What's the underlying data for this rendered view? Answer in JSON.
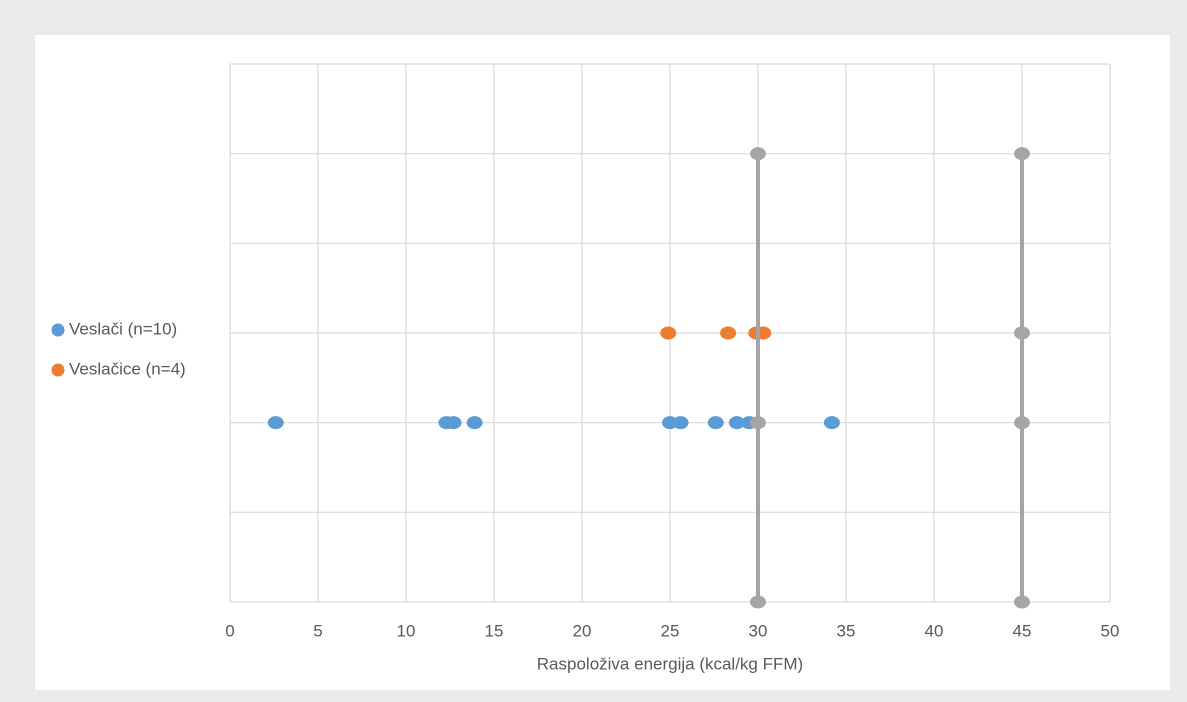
{
  "chart_data": {
    "type": "scatter",
    "x_label": "Raspoloživa energija (kcal/kg FFM)",
    "xlim": [
      0,
      50
    ],
    "xticks": [
      0,
      5,
      10,
      15,
      20,
      25,
      30,
      35,
      40,
      45,
      50
    ],
    "ylim": [
      0,
      6
    ],
    "yticks": [
      0,
      1,
      2,
      3,
      4,
      5,
      6
    ],
    "ytick_labels": false,
    "grid": true,
    "legend": "left",
    "series": [
      {
        "name": "Veslači (n=10)",
        "color": "#5b9bd5",
        "x": [
          2.6,
          12.3,
          12.7,
          13.9,
          25.0,
          25.6,
          27.6,
          28.8,
          29.5,
          34.2
        ],
        "y": [
          2,
          2,
          2,
          2,
          2,
          2,
          2,
          2,
          2,
          2
        ]
      },
      {
        "name": "Veslačice (n=4)",
        "color": "#ed7d31",
        "x": [
          24.9,
          28.3,
          29.9,
          30.3
        ],
        "y": [
          3,
          3,
          3,
          3
        ]
      },
      {
        "color": "#a5a5a5",
        "line": true,
        "x": [
          30,
          30,
          30
        ],
        "y": [
          0,
          2,
          5
        ]
      },
      {
        "color": "#a5a5a5",
        "line": true,
        "x": [
          45,
          45,
          45,
          45
        ],
        "y": [
          0,
          2,
          3,
          5
        ]
      }
    ]
  }
}
